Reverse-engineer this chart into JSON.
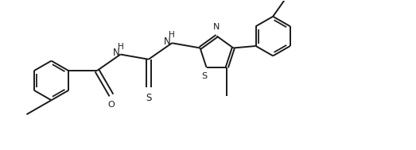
{
  "bg_color": "#ffffff",
  "line_color": "#1a1a1a",
  "lw": 1.4,
  "figsize": [
    5.23,
    1.89
  ],
  "dpi": 100,
  "xlim": [
    0,
    10.46
  ],
  "ylim": [
    0,
    3.78
  ]
}
